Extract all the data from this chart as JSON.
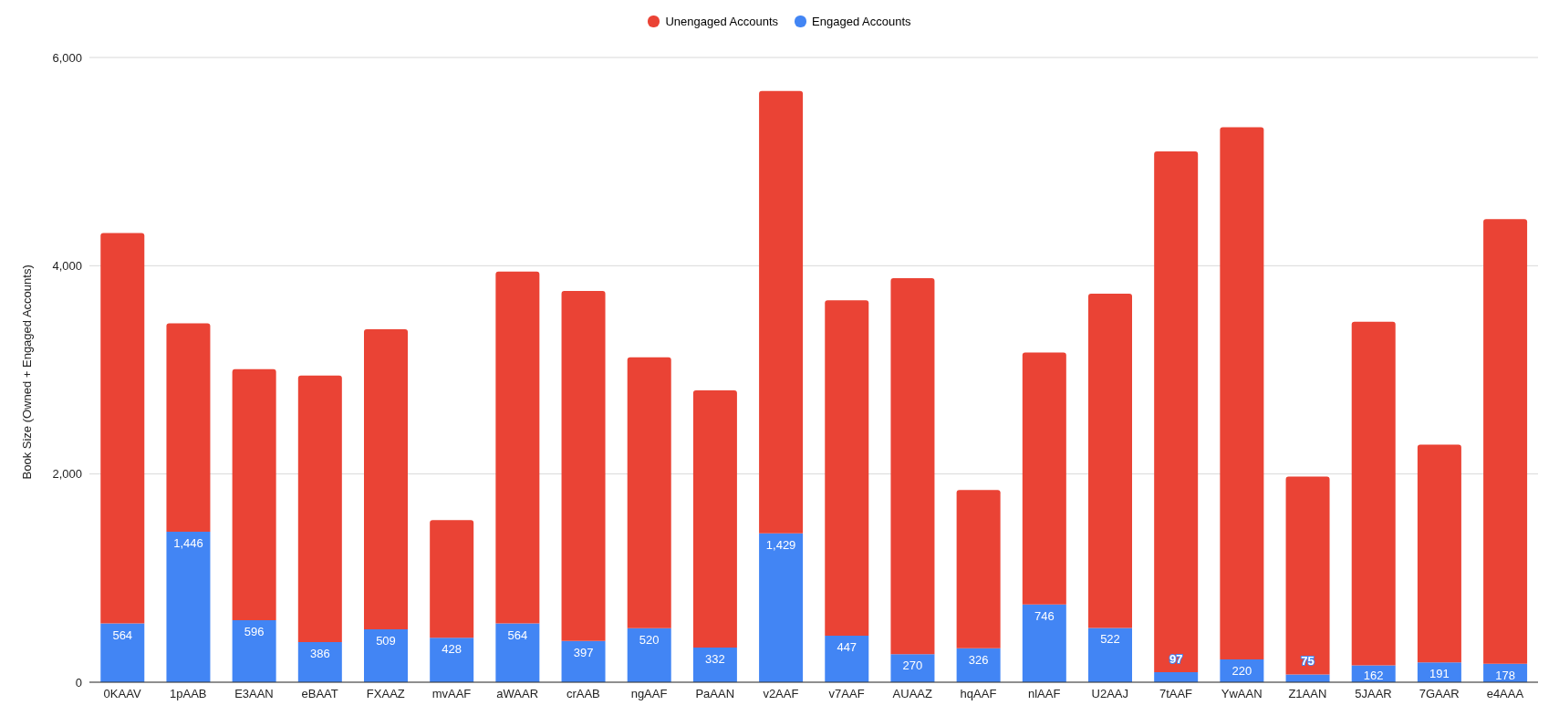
{
  "chart_data": {
    "type": "bar",
    "stacked": true,
    "ylabel": "Book Size (Owned + Engaged Accounts)",
    "categories": [
      "0KAAV",
      "1pAAB",
      "E3AAN",
      "eBAAT",
      "FXAAZ",
      "mvAAF",
      "aWAAR",
      "crAAB",
      "ngAAF",
      "PaAAN",
      "v2AAF",
      "v7AAF",
      "AUAAZ",
      "hqAAF",
      "nlAAF",
      "U2AAJ",
      "7tAAF",
      "YwAAN",
      "Z1AAN",
      "5JAAR",
      "7GAAR",
      "e4AAA"
    ],
    "series": [
      {
        "name": "Engaged Accounts",
        "color": "#4285f4",
        "values": [
          564,
          1446,
          596,
          386,
          509,
          428,
          564,
          397,
          520,
          332,
          1429,
          447,
          270,
          326,
          746,
          522,
          97,
          220,
          75,
          162,
          191,
          178
        ],
        "value_labels": [
          "564",
          "1,446",
          "596",
          "386",
          "509",
          "428",
          "564",
          "397",
          "520",
          "332",
          "1,429",
          "447",
          "270",
          "326",
          "746",
          "522",
          "97",
          "220",
          "75",
          "162",
          "191",
          "178"
        ]
      },
      {
        "name": "Unengaged Accounts",
        "color": "#ea4335",
        "values": [
          3750,
          2000,
          2410,
          2560,
          2880,
          1130,
          3380,
          3360,
          2600,
          2470,
          4250,
          3220,
          3610,
          1520,
          2420,
          3210,
          5000,
          5110,
          1900,
          3300,
          2090,
          4270
        ]
      }
    ],
    "ylim": [
      0,
      6000
    ],
    "yticks": [
      0,
      {
        "value": 2000,
        "label": "2,000"
      },
      {
        "value": 4000,
        "label": "4,000"
      },
      {
        "value": 6000,
        "label": "6,000"
      }
    ],
    "grid": "y",
    "legend": "top"
  }
}
